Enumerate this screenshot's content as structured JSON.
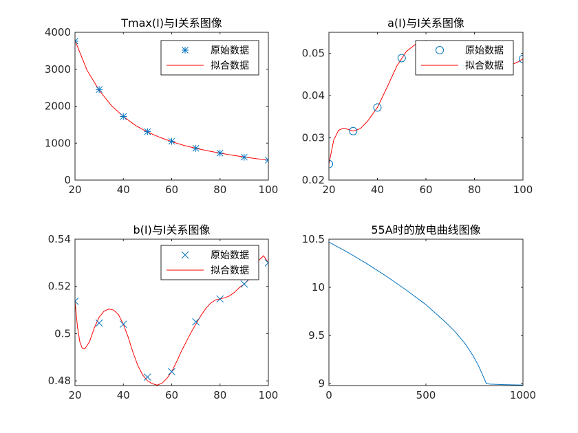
{
  "figure": {
    "background": "#ffffff",
    "axis_color": "#262626"
  },
  "chart_data": [
    {
      "id": "tmax",
      "type": "line",
      "title": "Tmax(I)与I关系图像",
      "xlim": [
        20,
        100
      ],
      "ylim": [
        0,
        4000
      ],
      "xticks": [
        "20",
        "40",
        "60",
        "80",
        "100"
      ],
      "yticks": [
        "0",
        "1000",
        "2000",
        "3000",
        "4000"
      ],
      "legend": {
        "position": "top-right",
        "entries": [
          "原始数据",
          "拟合数据"
        ]
      },
      "series": [
        {
          "name": "原始数据",
          "kind": "markers",
          "marker": "asterisk",
          "color": "#0072BD",
          "x": [
            20,
            30,
            40,
            50,
            60,
            70,
            80,
            90,
            100
          ],
          "y": [
            3760,
            2450,
            1720,
            1310,
            1050,
            860,
            730,
            620,
            540
          ]
        },
        {
          "name": "拟合数据",
          "kind": "line",
          "color": "#FF0000",
          "x": [
            20,
            25,
            30,
            35,
            40,
            45,
            50,
            55,
            60,
            65,
            70,
            75,
            80,
            85,
            90,
            95,
            100
          ],
          "y": [
            3780,
            2970,
            2430,
            2020,
            1720,
            1480,
            1300,
            1160,
            1040,
            940,
            860,
            790,
            730,
            675,
            625,
            580,
            540
          ]
        }
      ]
    },
    {
      "id": "a",
      "type": "line",
      "title": "a(I)与I关系图像",
      "xlim": [
        20,
        100
      ],
      "ylim": [
        0.02,
        0.055
      ],
      "xticks": [
        "20",
        "40",
        "60",
        "80",
        "100"
      ],
      "yticks": [
        "0.02",
        "0.03",
        "0.04",
        "0.05"
      ],
      "legend": {
        "position": "top-right",
        "entries": [
          "原始数据",
          "拟合数据"
        ]
      },
      "series": [
        {
          "name": "原始数据",
          "kind": "markers",
          "marker": "circle",
          "color": "#0072BD",
          "x": [
            20,
            30,
            40,
            50,
            60,
            70,
            80,
            90,
            100
          ],
          "y": [
            0.0238,
            0.0316,
            0.0372,
            0.0489,
            0.0522,
            0.0508,
            0.0496,
            0.0482,
            0.0487
          ]
        },
        {
          "name": "拟合数据",
          "kind": "line",
          "color": "#FF0000",
          "x": [
            20,
            22,
            24,
            26,
            28,
            30,
            33,
            36,
            40,
            44,
            48,
            52,
            56,
            60,
            64,
            68,
            72,
            76,
            80,
            84,
            88,
            92,
            96,
            98,
            100
          ],
          "y": [
            0.0238,
            0.0295,
            0.0318,
            0.0323,
            0.032,
            0.0316,
            0.0322,
            0.034,
            0.0372,
            0.042,
            0.047,
            0.0505,
            0.0523,
            0.0527,
            0.052,
            0.051,
            0.0503,
            0.0498,
            0.0496,
            0.0492,
            0.0486,
            0.048,
            0.0475,
            0.048,
            0.0487
          ]
        }
      ]
    },
    {
      "id": "b",
      "type": "line",
      "title": "b(I)与I关系图像",
      "xlim": [
        20,
        100
      ],
      "ylim": [
        0.478,
        0.54
      ],
      "xticks": [
        "20",
        "40",
        "60",
        "80",
        "100"
      ],
      "yticks": [
        "0.48",
        "0.5",
        "0.52",
        "0.54"
      ],
      "legend": {
        "position": "top-right",
        "entries": [
          "原始数据",
          "拟合数据"
        ]
      },
      "series": [
        {
          "name": "原始数据",
          "kind": "markers",
          "marker": "cross",
          "color": "#0072BD",
          "x": [
            20,
            30,
            40,
            50,
            60,
            70,
            80,
            90,
            100
          ],
          "y": [
            0.5137,
            0.5045,
            0.504,
            0.4816,
            0.4839,
            0.505,
            0.5147,
            0.521,
            0.53
          ]
        },
        {
          "name": "拟合数据",
          "kind": "line",
          "color": "#FF0000",
          "x": [
            20,
            21,
            22,
            23,
            24,
            26,
            28,
            30,
            32,
            34,
            36,
            38,
            40,
            42,
            44,
            46,
            48,
            50,
            52,
            54,
            56,
            58,
            60,
            62,
            64,
            66,
            68,
            70,
            72,
            74,
            76,
            78,
            80,
            82,
            84,
            86,
            88,
            90,
            92,
            94,
            96,
            98,
            100
          ],
          "y": [
            0.5137,
            0.503,
            0.4965,
            0.4938,
            0.4935,
            0.4965,
            0.5025,
            0.507,
            0.5095,
            0.5104,
            0.51,
            0.508,
            0.504,
            0.4985,
            0.492,
            0.4865,
            0.4825,
            0.48,
            0.4788,
            0.4782,
            0.479,
            0.481,
            0.4839,
            0.488,
            0.4925,
            0.4965,
            0.5005,
            0.504,
            0.5075,
            0.5105,
            0.5128,
            0.5142,
            0.5147,
            0.5152,
            0.516,
            0.5175,
            0.5195,
            0.521,
            0.523,
            0.527,
            0.531,
            0.533,
            0.53
          ]
        }
      ]
    },
    {
      "id": "discharge",
      "type": "line",
      "title": "55A时的放电曲线图像",
      "xlim": [
        0,
        1000
      ],
      "ylim": [
        8.98,
        10.5
      ],
      "xticks": [
        "0",
        "500",
        "1000"
      ],
      "yticks": [
        "9",
        "9.5",
        "10",
        "10.5"
      ],
      "legend": null,
      "series": [
        {
          "kind": "line",
          "color": "#0072BD",
          "x": [
            0,
            100,
            200,
            300,
            400,
            500,
            600,
            650,
            700,
            740,
            770,
            790,
            805,
            812,
            815,
            830,
            900,
            1000
          ],
          "y": [
            10.47,
            10.36,
            10.24,
            10.11,
            9.97,
            9.82,
            9.64,
            9.54,
            9.42,
            9.3,
            9.19,
            9.1,
            9.03,
            9.0,
            9.0,
            8.995,
            8.99,
            8.985
          ]
        }
      ]
    }
  ]
}
